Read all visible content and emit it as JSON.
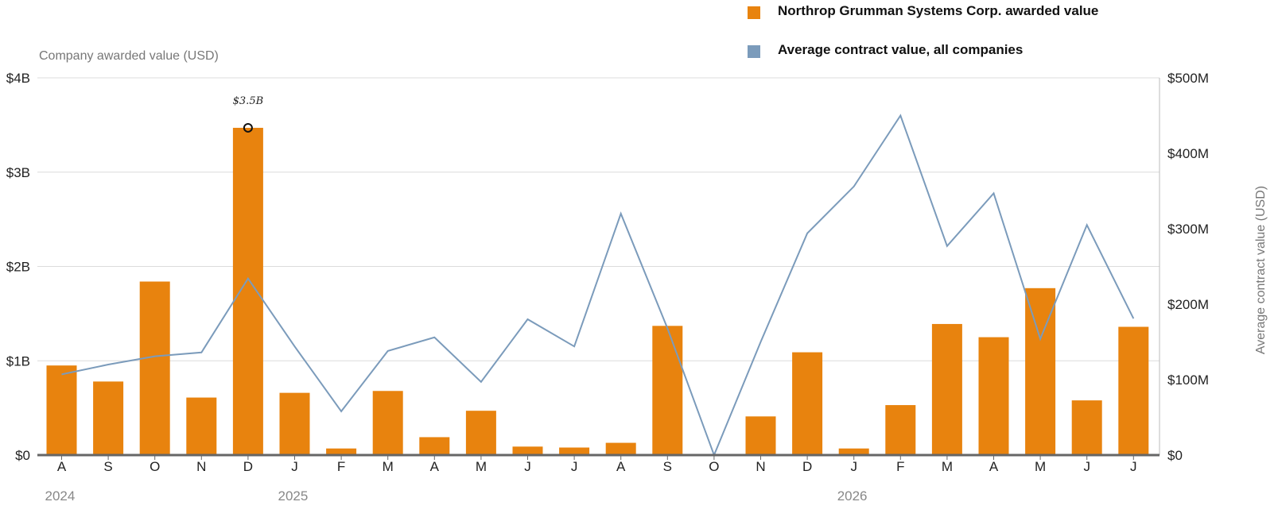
{
  "legend": [
    {
      "label": "Northrop Grumman Systems Corp. awarded value",
      "color": "#E8830E"
    },
    {
      "label": "Average contract value, all companies",
      "color": "#7B9BBB"
    }
  ],
  "chart_data": {
    "type": "bar",
    "left_axis_title": "Company awarded value (USD)",
    "right_axis_title": "Average contract value (USD)",
    "left_ticks": [
      "$0",
      "$1B",
      "$2B",
      "$3B",
      "$4B"
    ],
    "right_ticks": [
      "$0",
      "$100M",
      "$200M",
      "$300M",
      "$400M",
      "$500M"
    ],
    "left_ylim": [
      0,
      4
    ],
    "right_ylim": [
      0,
      500
    ],
    "categories": [
      "A",
      "S",
      "O",
      "N",
      "D",
      "J",
      "F",
      "M",
      "A",
      "M",
      "J",
      "J",
      "A",
      "S",
      "O",
      "N",
      "D",
      "J",
      "F",
      "M",
      "A",
      "M",
      "J",
      "J"
    ],
    "year_labels": [
      {
        "label": "2024",
        "index": 0
      },
      {
        "label": "2025",
        "index": 5
      },
      {
        "label": "2026",
        "index": 17
      }
    ],
    "series": [
      {
        "name": "Northrop Grumman Systems Corp. awarded value",
        "type": "bar",
        "axis": "left",
        "unit": "USD billions",
        "color": "#E8830E",
        "values": [
          0.95,
          0.78,
          1.84,
          0.61,
          3.47,
          0.66,
          0.07,
          0.68,
          0.19,
          0.47,
          0.09,
          0.08,
          0.13,
          1.37,
          0,
          0.41,
          1.09,
          0.07,
          0.53,
          1.39,
          1.25,
          1.77,
          0.58,
          1.36
        ]
      },
      {
        "name": "Average contract value, all companies",
        "type": "line",
        "axis": "right",
        "unit": "USD millions",
        "color": "#7B9BBB",
        "values": [
          107,
          120,
          131,
          136,
          234,
          144,
          58,
          138,
          156,
          97,
          180,
          144,
          320,
          168,
          0,
          150,
          294,
          356,
          450,
          277,
          347,
          154,
          305,
          181
        ]
      }
    ],
    "annotation": {
      "label": "$3.5B",
      "index": 4,
      "value": 3.47
    },
    "grid": true
  }
}
